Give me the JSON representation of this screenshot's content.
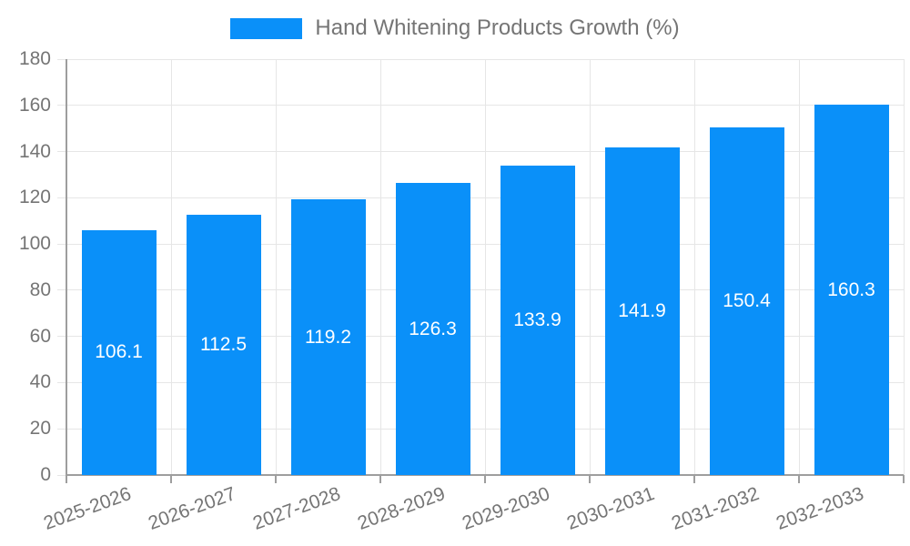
{
  "legend": {
    "label": "Hand Whitening Products Growth (%)"
  },
  "chart_data": {
    "type": "bar",
    "title": "Hand Whitening Products Growth (%)",
    "categories": [
      "2025-2026",
      "2026-2027",
      "2027-2028",
      "2028-2029",
      "2029-2030",
      "2030-2031",
      "2031-2032",
      "2032-2033"
    ],
    "values": [
      106.1,
      112.5,
      119.2,
      126.3,
      133.9,
      141.9,
      150.4,
      160.3
    ],
    "value_labels": "inside-center",
    "xlabel": "",
    "ylabel": "",
    "ylim": [
      0,
      180
    ],
    "yticks": [
      0,
      20,
      40,
      60,
      80,
      100,
      120,
      140,
      160,
      180
    ],
    "grid": "on",
    "legend_position": "top-center",
    "x_label_rotation_deg": -20,
    "colors": {
      "bar": "#0a90f9",
      "value_label": "#ffffff",
      "axis_text": "#757575",
      "grid_line": "#e6e6e6",
      "axis_line": "#9e9e9e",
      "background": "#ffffff"
    }
  }
}
